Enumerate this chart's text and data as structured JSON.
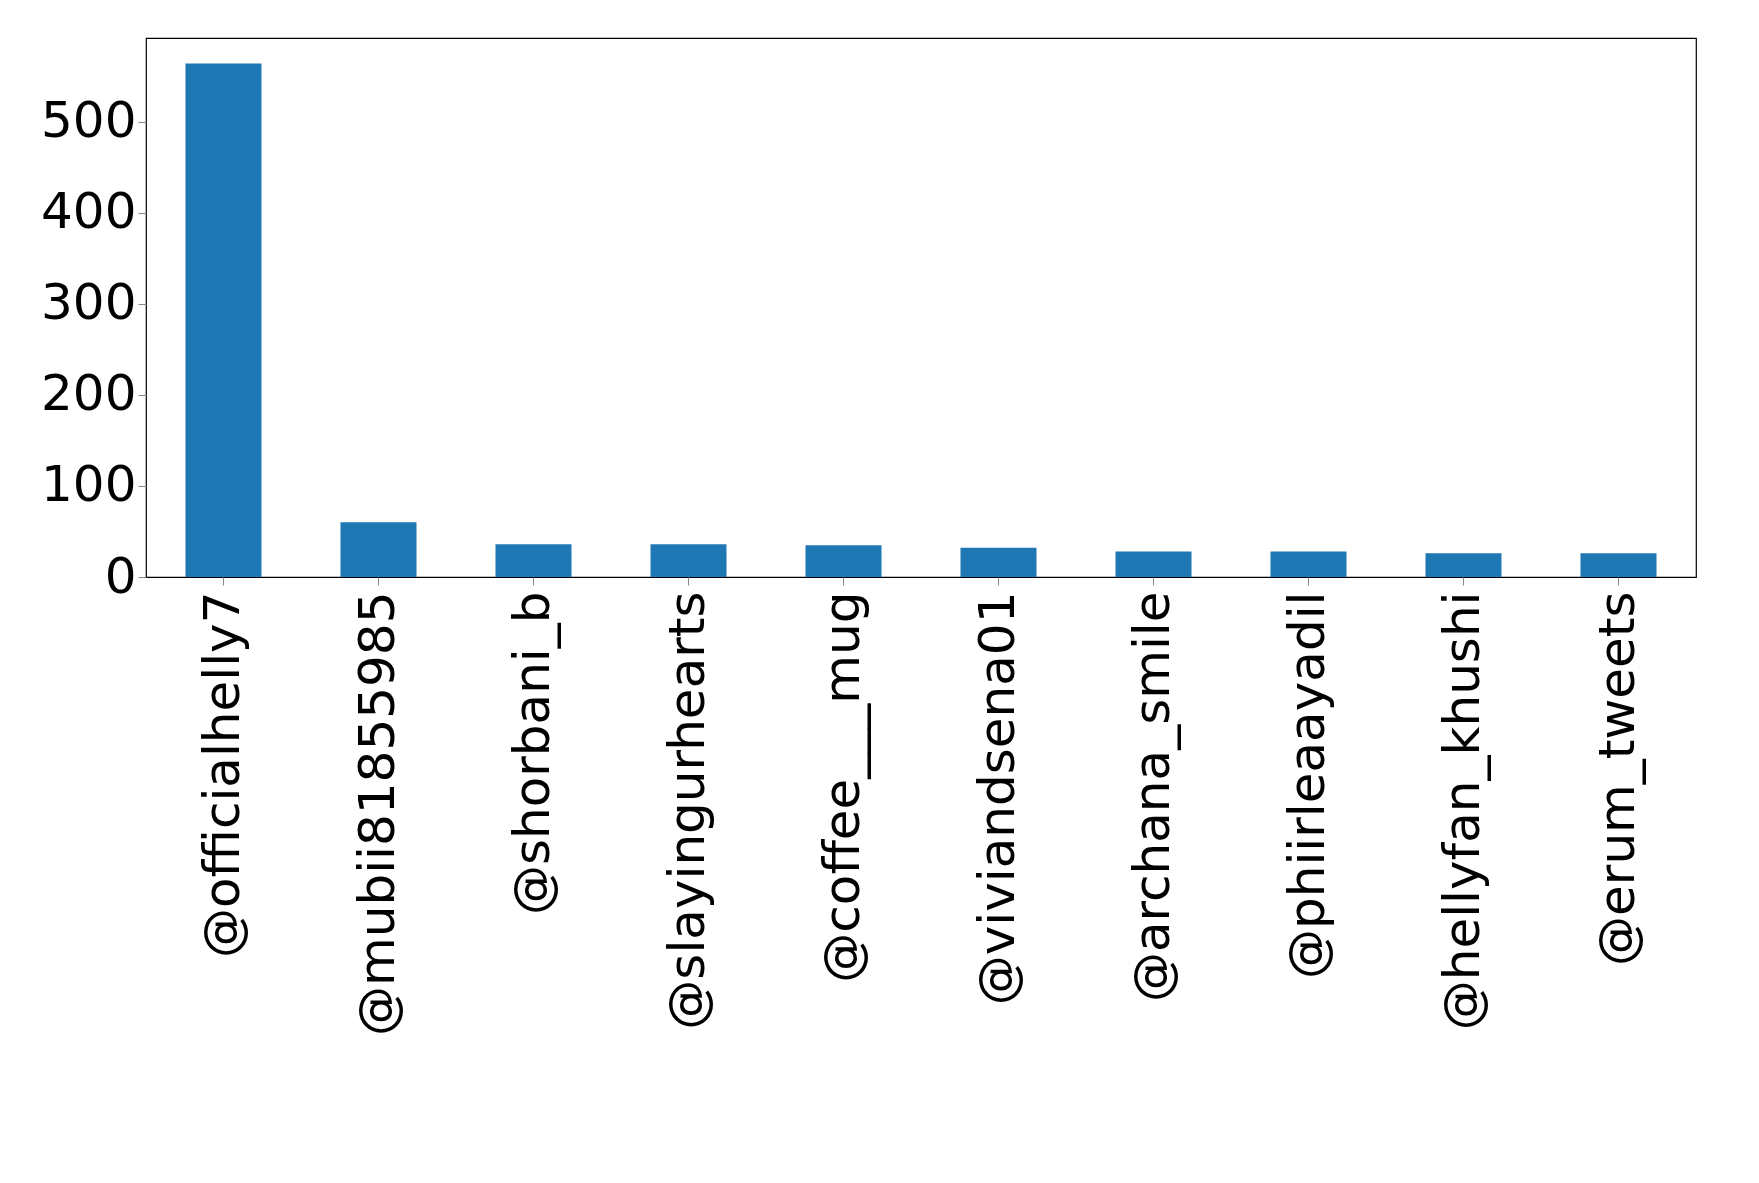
{
  "chart_data": {
    "type": "bar",
    "categories": [
      "@officialhelly7",
      "@mubii81855985",
      "@shorbani_b",
      "@slayingurhearts",
      "@coffee___mug",
      "@viviandsena01",
      "@archana_smile",
      "@phiirleaayadil",
      "@hellyfan_khushi",
      "@erum_tweets"
    ],
    "values": [
      564,
      60,
      36,
      36,
      35,
      32,
      28,
      28,
      26,
      26
    ],
    "color": "#1f77b4",
    "ylim": [
      0,
      592
    ],
    "yticks": [
      0,
      100,
      200,
      300,
      400,
      500
    ],
    "grid": false
  }
}
